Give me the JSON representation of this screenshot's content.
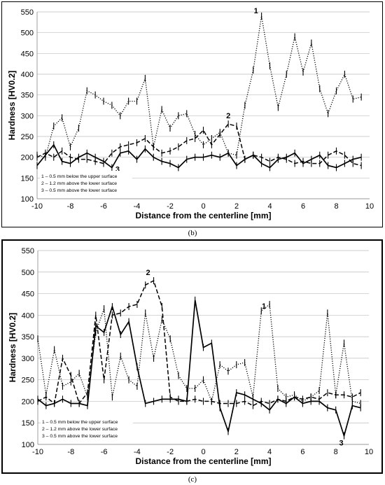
{
  "panels": [
    {
      "label": "(b)"
    },
    {
      "label": "(c)"
    }
  ],
  "chart_data": [
    {
      "type": "line",
      "panel": "(b)",
      "xlabel": "Distance from the centerline [mm]",
      "ylabel": "Hardness [HV0.2]",
      "xlim": [
        -10,
        10
      ],
      "ylim": [
        100,
        550
      ],
      "xticks": [
        -10,
        -8,
        -6,
        -4,
        -2,
        0,
        2,
        4,
        6,
        8,
        10
      ],
      "yticks": [
        100,
        150,
        200,
        250,
        300,
        350,
        400,
        450,
        500,
        550
      ],
      "grid": "horizontal",
      "legend_position": "bottom-left",
      "x": [
        -10,
        -9.5,
        -9,
        -8.5,
        -8,
        -7.5,
        -7,
        -6.5,
        -6,
        -5.5,
        -5,
        -4.5,
        -4,
        -3.5,
        -3,
        -2.5,
        -2,
        -1.5,
        -1,
        -0.5,
        0,
        0.5,
        1,
        1.5,
        2,
        2.5,
        3,
        3.5,
        4,
        4.5,
        5,
        5.5,
        6,
        6.5,
        7,
        7.5,
        8,
        8.5,
        9,
        9.5
      ],
      "series": [
        {
          "name": "1 – 0.5 mm below the upper surface",
          "style": "dotted",
          "curve_label": "1",
          "values": [
            205,
            200,
            275,
            295,
            225,
            270,
            360,
            350,
            335,
            325,
            300,
            335,
            335,
            390,
            225,
            315,
            270,
            300,
            305,
            255,
            230,
            245,
            260,
            210,
            205,
            325,
            410,
            540,
            420,
            320,
            400,
            490,
            405,
            475,
            365,
            305,
            360,
            400,
            340,
            345
          ]
        },
        {
          "name": "2 – 1.2 mm above the lower surface",
          "style": "dashed",
          "curve_label": "2",
          "values": [
            200,
            210,
            200,
            215,
            200,
            195,
            195,
            190,
            185,
            210,
            225,
            230,
            235,
            245,
            225,
            210,
            215,
            225,
            240,
            245,
            265,
            230,
            255,
            280,
            275,
            195,
            205,
            200,
            190,
            200,
            195,
            185,
            190,
            185,
            185,
            205,
            215,
            205,
            185,
            180
          ]
        },
        {
          "name": "3 – 0.5 mm above the lower surface",
          "style": "solid",
          "curve_label": "3",
          "values": [
            180,
            205,
            230,
            190,
            185,
            200,
            210,
            200,
            190,
            175,
            210,
            215,
            195,
            220,
            200,
            190,
            185,
            175,
            195,
            200,
            200,
            205,
            200,
            210,
            180,
            195,
            205,
            185,
            175,
            195,
            200,
            210,
            185,
            195,
            205,
            180,
            175,
            185,
            195,
            200
          ]
        }
      ]
    },
    {
      "type": "line",
      "panel": "(c)",
      "xlabel": "Distance from the centerline [mm]",
      "ylabel": "Hardness [HV0.2]",
      "xlim": [
        -10,
        10
      ],
      "ylim": [
        100,
        550
      ],
      "xticks": [
        -10,
        -8,
        -6,
        -4,
        -2,
        0,
        2,
        4,
        6,
        8,
        10
      ],
      "yticks": [
        100,
        150,
        200,
        250,
        300,
        350,
        400,
        450,
        500,
        550
      ],
      "grid": "horizontal",
      "legend_position": "bottom-left",
      "x": [
        -10,
        -9.5,
        -9,
        -8.5,
        -8,
        -7.5,
        -7,
        -6.5,
        -6,
        -5.5,
        -5,
        -4.5,
        -4,
        -3.5,
        -3,
        -2.5,
        -2,
        -1.5,
        -1,
        -0.5,
        0,
        0.5,
        1,
        1.5,
        2,
        2.5,
        3,
        3.5,
        4,
        4.5,
        5,
        5.5,
        6,
        6.5,
        7,
        7.5,
        8,
        8.5,
        9,
        9.5
      ],
      "series": [
        {
          "name": "1 – 0.5 mm below the upper surface",
          "style": "dotted",
          "curve_label": "1",
          "values": [
            345,
            215,
            320,
            235,
            245,
            265,
            210,
            360,
            415,
            210,
            305,
            250,
            235,
            405,
            300,
            390,
            345,
            260,
            230,
            230,
            250,
            200,
            285,
            270,
            285,
            290,
            210,
            410,
            425,
            230,
            210,
            215,
            200,
            210,
            225,
            405,
            215,
            335,
            200,
            195
          ]
        },
        {
          "name": "2 – 1.2 mm above the lower surface",
          "style": "dashed",
          "curve_label": "2",
          "values": [
            200,
            210,
            195,
            300,
            260,
            195,
            220,
            400,
            250,
            400,
            405,
            420,
            425,
            470,
            480,
            420,
            210,
            200,
            200,
            205,
            200,
            200,
            195,
            195,
            195,
            200,
            190,
            200,
            195,
            205,
            200,
            210,
            205,
            210,
            205,
            220,
            215,
            215,
            210,
            220
          ]
        },
        {
          "name": "3 – 0.5 mm above the lower surface",
          "style": "solid",
          "curve_label": "3",
          "values": [
            205,
            190,
            195,
            205,
            195,
            195,
            190,
            375,
            360,
            420,
            355,
            385,
            280,
            195,
            200,
            205,
            205,
            205,
            200,
            435,
            325,
            335,
            185,
            130,
            220,
            215,
            205,
            195,
            180,
            205,
            195,
            210,
            195,
            200,
            200,
            185,
            180,
            120,
            190,
            185
          ]
        }
      ]
    }
  ]
}
